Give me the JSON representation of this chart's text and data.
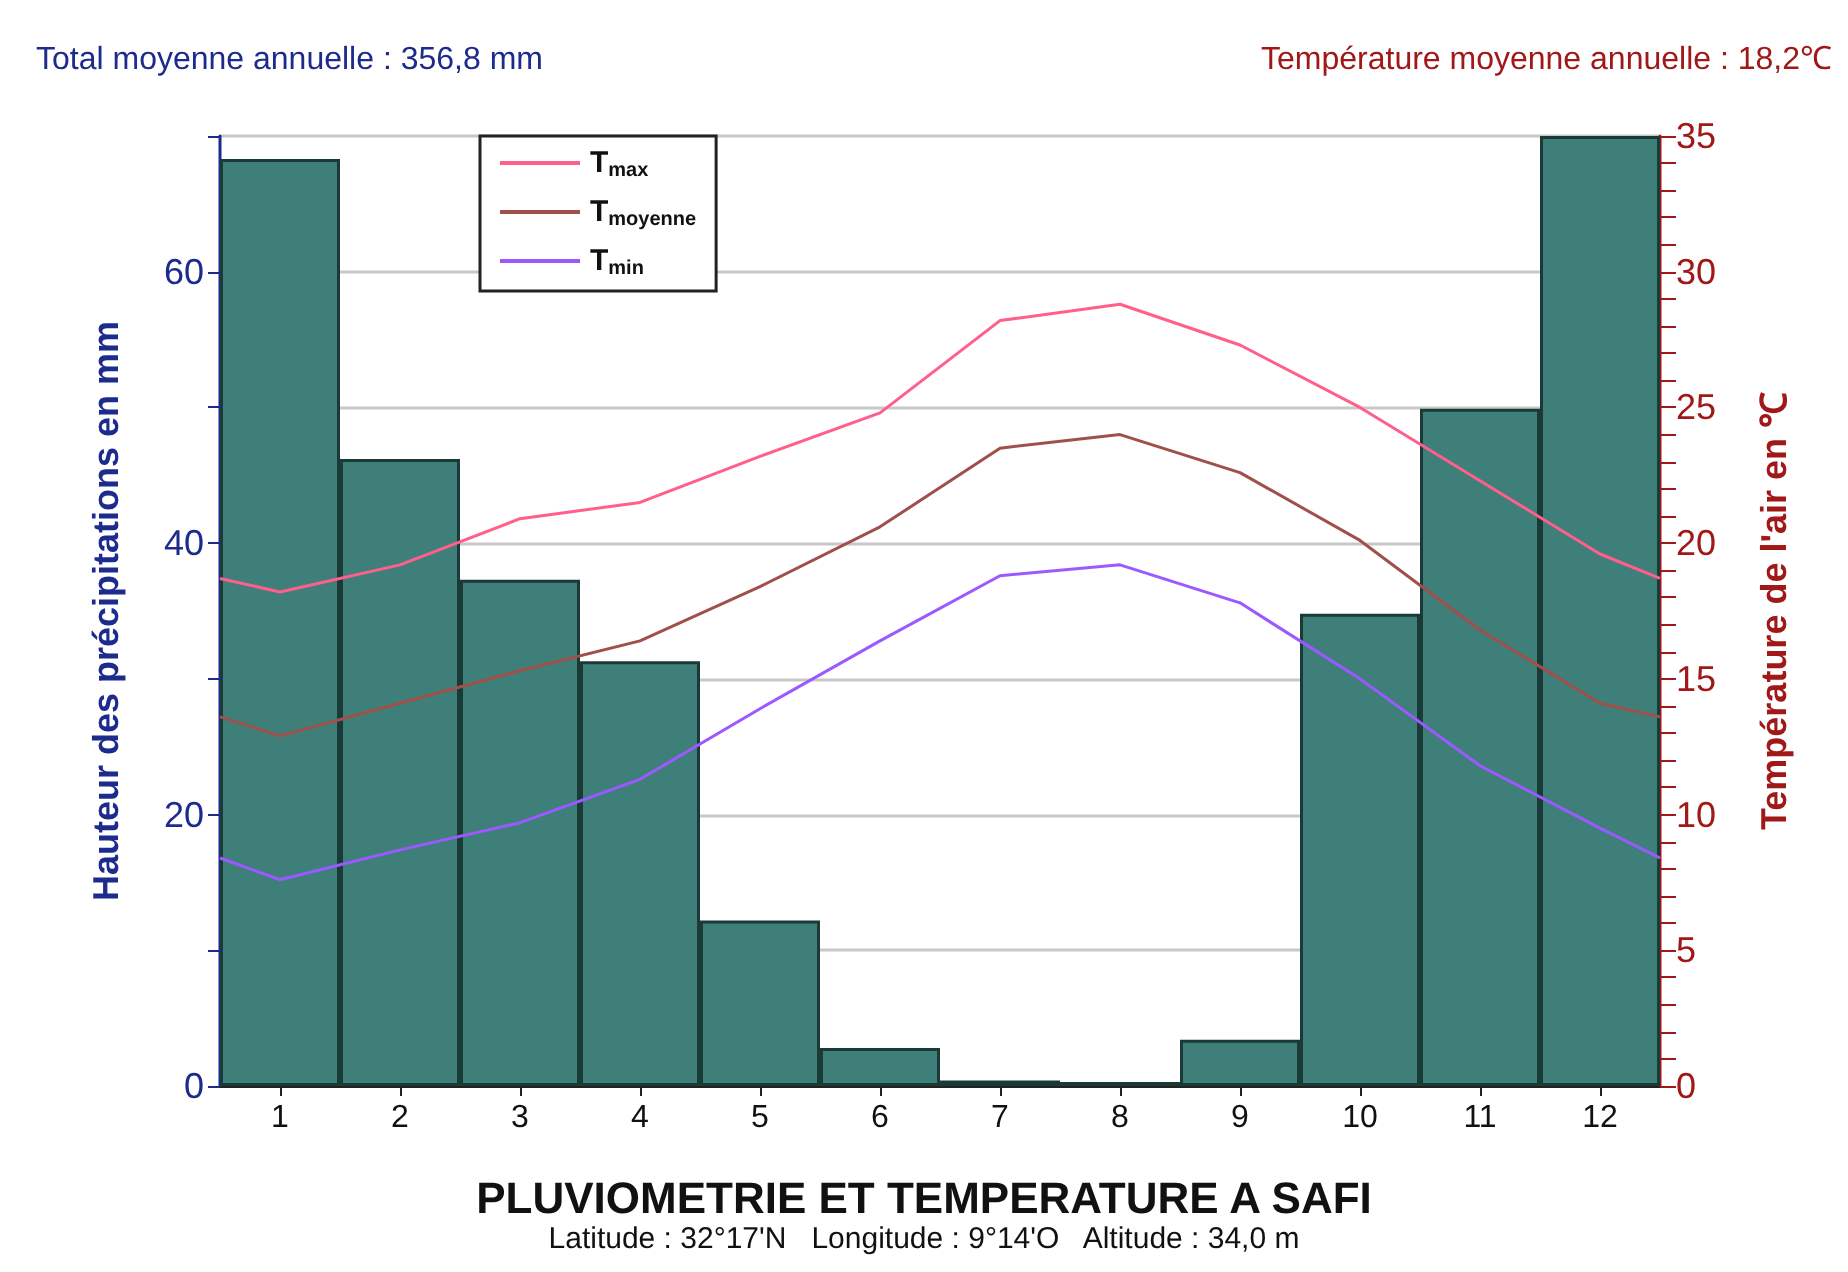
{
  "chart_data": {
    "type": "bar",
    "title": "PLUVIOMETRIE ET TEMPERATURE A SAFI",
    "subtitle": "Latitude : 32°17'N   Longitude : 9°14'O   Altitude : 34,0 m",
    "ylabel": "Hauteur des précipitations en mm",
    "y2label": "Température de l'air en ℃",
    "annotations": [
      "Total moyenne annuelle : 356,8 mm",
      "Température moyenne annuelle : 18,2℃"
    ],
    "x": [
      1,
      2,
      3,
      4,
      5,
      6,
      7,
      8,
      9,
      10,
      11,
      12
    ],
    "xlim": [
      0.5,
      12.5
    ],
    "xticks": [
      1,
      2,
      3,
      4,
      5,
      6,
      7,
      8,
      9,
      10,
      11,
      12
    ],
    "ylim": [
      0,
      70
    ],
    "yticks": [
      0,
      {
        "value": 10,
        "label": null
      },
      20,
      {
        "value": 30,
        "label": null
      },
      40,
      {
        "value": 50,
        "label": null
      },
      60,
      {
        "value": 70,
        "label": null
      }
    ],
    "y2lim": [
      0,
      35
    ],
    "y2ticks": [
      0,
      {
        "value": 1,
        "label": null
      },
      {
        "value": 2,
        "label": null
      },
      {
        "value": 3,
        "label": null
      },
      {
        "value": 4,
        "label": null
      },
      5,
      {
        "value": 6,
        "label": null
      },
      {
        "value": 7,
        "label": null
      },
      {
        "value": 8,
        "label": null
      },
      {
        "value": 9,
        "label": null
      },
      10,
      {
        "value": 11,
        "label": null
      },
      {
        "value": 12,
        "label": null
      },
      {
        "value": 13,
        "label": null
      },
      {
        "value": 14,
        "label": null
      },
      15,
      {
        "value": 16,
        "label": null
      },
      {
        "value": 17,
        "label": null
      },
      {
        "value": 18,
        "label": null
      },
      {
        "value": 19,
        "label": null
      },
      20,
      {
        "value": 21,
        "label": null
      },
      {
        "value": 22,
        "label": null
      },
      {
        "value": 23,
        "label": null
      },
      {
        "value": 24,
        "label": null
      },
      25,
      {
        "value": 26,
        "label": null
      },
      {
        "value": 27,
        "label": null
      },
      {
        "value": 28,
        "label": null
      },
      {
        "value": 29,
        "label": null
      },
      30,
      {
        "value": 31,
        "label": null
      },
      {
        "value": 32,
        "label": null
      },
      {
        "value": 33,
        "label": null
      },
      {
        "value": 34,
        "label": null
      },
      35
    ],
    "grid": "y",
    "legend": "top left",
    "marker": "none",
    "line_style": "solid",
    "series": [
      {
        "color": "#3f7f7a",
        "values": [
          68.3,
          46.2,
          37.3,
          31.3,
          12.2,
          2.8,
          0.4,
          0.3,
          3.4,
          34.8,
          49.9,
          70
        ]
      },
      {
        "type": "line",
        "name": "T$_{max}$",
        "color": "#ff5f8a",
        "axis": "y2",
        "x": [
          0.5,
          1,
          2,
          3,
          4,
          5,
          6,
          7,
          8,
          9,
          10,
          11,
          12,
          12.5
        ],
        "values": [
          18.7,
          18.2,
          19.2,
          20.9,
          21.5,
          23.2,
          24.8,
          28.2,
          28.8,
          27.3,
          25.0,
          22.3,
          19.6,
          18.7
        ]
      },
      {
        "type": "line",
        "name": "T$_{moyenne}$",
        "color": "#a0504a",
        "axis": "y2",
        "x": [
          0.5,
          1,
          2,
          3,
          4,
          5,
          6,
          7,
          8,
          9,
          10,
          11,
          12,
          12.5
        ],
        "values": [
          13.6,
          12.9,
          14.1,
          15.3,
          16.4,
          18.4,
          20.6,
          23.5,
          24.0,
          22.6,
          20.1,
          16.8,
          14.1,
          13.6
        ]
      },
      {
        "type": "line",
        "name": "T$_{min}$",
        "color": "#9b59ff",
        "axis": "y2",
        "x": [
          0.5,
          1,
          2,
          3,
          4,
          5,
          6,
          7,
          8,
          9,
          10,
          11,
          12,
          12.5
        ],
        "values": [
          8.4,
          7.6,
          8.7,
          9.7,
          11.3,
          13.9,
          16.4,
          18.8,
          19.2,
          17.8,
          15.0,
          11.8,
          9.5,
          8.4
        ]
      }
    ]
  }
}
